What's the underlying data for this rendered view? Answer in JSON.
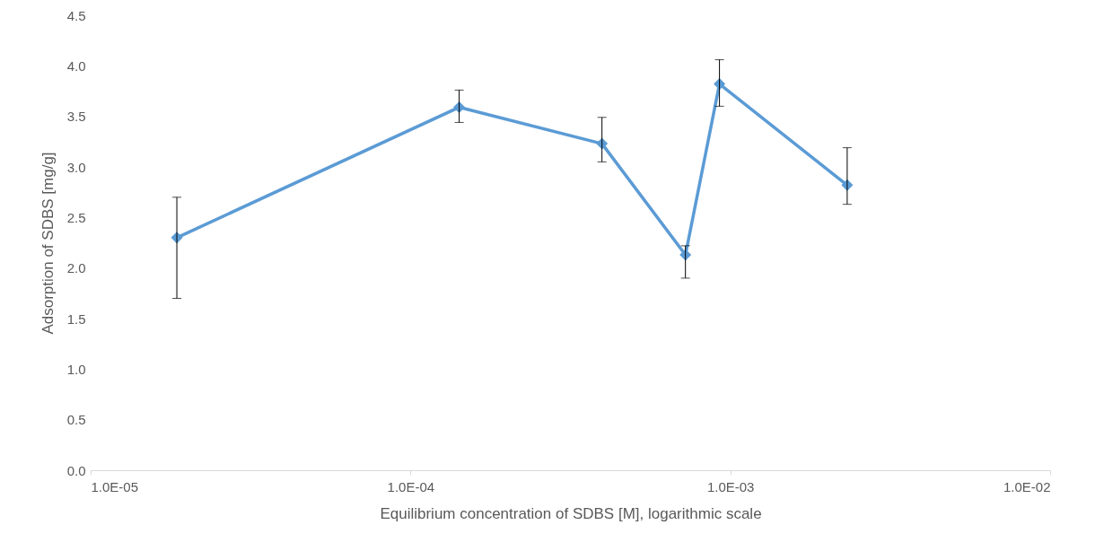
{
  "chart_data": {
    "type": "line",
    "xlabel": "Equilibrium concentration of SDBS [M], logarithmic scale",
    "ylabel": "Adsorption of SDBS [mg/g]",
    "x": [
      1.86e-05,
      0.000142,
      0.000397,
      0.000724,
      0.000925,
      0.00232
    ],
    "series": [
      {
        "color": "#5b9bd5",
        "values": [
          2.3,
          3.59,
          3.23,
          2.13,
          3.82,
          2.82
        ],
        "errors": [
          [
            1.7,
            2.7
          ],
          [
            3.44,
            3.76
          ],
          [
            3.05,
            3.49
          ],
          [
            1.9,
            2.22
          ],
          [
            3.6,
            4.06
          ],
          [
            2.63,
            3.19
          ]
        ]
      }
    ],
    "log": "x",
    "xlim": [
      1e-05,
      0.01
    ],
    "xticks": [
      {
        "value": 1e-05,
        "label": "1.0E-05"
      },
      {
        "value": 0.0001,
        "label": "1.0E-04"
      },
      {
        "value": 0.001,
        "label": "1.0E-03"
      },
      {
        "value": 0.01,
        "label": "1.0E-02"
      }
    ],
    "ylim": [
      0,
      4.5
    ],
    "yticks": [
      {
        "value": 0,
        "label": "0.0"
      },
      {
        "value": 0.5,
        "label": "0.5"
      },
      {
        "value": 1,
        "label": "1.0"
      },
      {
        "value": 1.5,
        "label": "1.5"
      },
      {
        "value": 2,
        "label": "2.0"
      },
      {
        "value": 2.5,
        "label": "2.5"
      },
      {
        "value": 3,
        "label": "3.0"
      },
      {
        "value": 3.5,
        "label": "3.5"
      },
      {
        "value": 4,
        "label": "4.0"
      },
      {
        "value": 4.5,
        "label": "4.5"
      }
    ],
    "grid": false,
    "marker": "diamond",
    "line_style": "solid"
  }
}
